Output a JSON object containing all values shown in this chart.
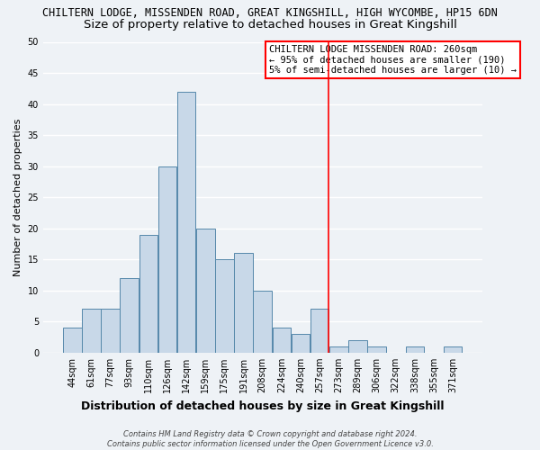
{
  "title": "CHILTERN LODGE, MISSENDEN ROAD, GREAT KINGSHILL, HIGH WYCOMBE, HP15 6DN",
  "subtitle": "Size of property relative to detached houses in Great Kingshill",
  "xlabel": "Distribution of detached houses by size in Great Kingshill",
  "ylabel": "Number of detached properties",
  "bin_labels": [
    "44sqm",
    "61sqm",
    "77sqm",
    "93sqm",
    "110sqm",
    "126sqm",
    "142sqm",
    "159sqm",
    "175sqm",
    "191sqm",
    "208sqm",
    "224sqm",
    "240sqm",
    "257sqm",
    "273sqm",
    "289sqm",
    "306sqm",
    "322sqm",
    "338sqm",
    "355sqm",
    "371sqm"
  ],
  "bar_heights": [
    4,
    7,
    7,
    12,
    19,
    30,
    42,
    20,
    15,
    16,
    10,
    4,
    3,
    7,
    1,
    2,
    1,
    0,
    1,
    0,
    1
  ],
  "bar_color": "#c8d8e8",
  "bar_edge_color": "#5588aa",
  "ylim": [
    0,
    50
  ],
  "yticks": [
    0,
    5,
    10,
    15,
    20,
    25,
    30,
    35,
    40,
    45,
    50
  ],
  "annotation_title": "CHILTERN LODGE MISSENDEN ROAD: 260sqm",
  "annotation_line1": "← 95% of detached houses are smaller (190)",
  "annotation_line2": "5% of semi-detached houses are larger (10) →",
  "footer1": "Contains HM Land Registry data © Crown copyright and database right 2024.",
  "footer2": "Contains public sector information licensed under the Open Government Licence v3.0.",
  "bg_color": "#eef2f6",
  "grid_color": "#ffffff",
  "vline_color": "red",
  "vline_index": 13.47,
  "title_fontsize": 8.5,
  "subtitle_fontsize": 9.5,
  "axis_label_fontsize": 8,
  "tick_fontsize": 7,
  "annotation_fontsize": 7.5,
  "footer_fontsize": 6
}
